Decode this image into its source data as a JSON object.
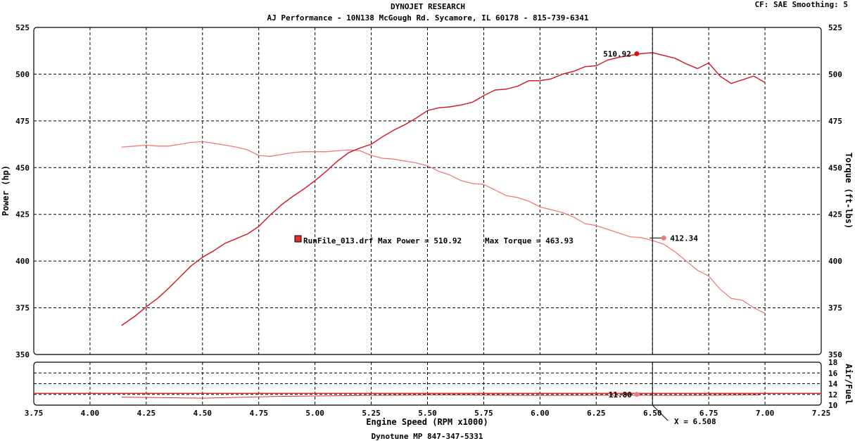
{
  "header": {
    "title": "DYNOJET RESEARCH",
    "subtitle": "AJ Performance - 10N138 McGough Rd. Sycamore, IL 60178 - 815-739-6341",
    "settings": "CF: SAE  Smoothing: 5"
  },
  "footer": {
    "text": "Dynotune MP 847-347-5331"
  },
  "legend": {
    "run_label": "RunFile_013.drf Max Power = 510.92",
    "torque_label": "Max Torque = 463.93",
    "swatch_color": "#e8302a"
  },
  "cursor": {
    "x_label": "X = 6.508"
  },
  "colors": {
    "power": "#d0202a",
    "torque": "#f07a7a",
    "afr": "#e03030",
    "grid": "#000000"
  },
  "chart_data": [
    {
      "type": "line",
      "xlabel": "Engine Speed (RPM x1000)",
      "ylabel": "Power (hp)",
      "y2label": "Torque (ft-lbs)",
      "xlim": [
        3.75,
        7.25
      ],
      "ylim": [
        350,
        525
      ],
      "y2lim": [
        350,
        525
      ],
      "x_ticks": [
        "3.75",
        "4.00",
        "4.25",
        "4.50",
        "4.75",
        "5.00",
        "5.25",
        "5.50",
        "5.75",
        "6.00",
        "6.25",
        "6.50",
        "6.75",
        "7.00",
        "7.25"
      ],
      "y_ticks": [
        "350",
        "375",
        "400",
        "425",
        "450",
        "475",
        "500",
        "525"
      ],
      "grid": true,
      "series": [
        {
          "key": "power",
          "x": [
            4.14,
            4.2,
            4.25,
            4.3,
            4.35,
            4.4,
            4.45,
            4.5,
            4.55,
            4.6,
            4.65,
            4.7,
            4.75,
            4.8,
            4.85,
            4.9,
            4.95,
            5.0,
            5.05,
            5.1,
            5.15,
            5.2,
            5.25,
            5.3,
            5.35,
            5.4,
            5.45,
            5.5,
            5.55,
            5.6,
            5.65,
            5.7,
            5.75,
            5.8,
            5.85,
            5.9,
            5.95,
            6.0,
            6.05,
            6.1,
            6.15,
            6.2,
            6.25,
            6.3,
            6.35,
            6.4,
            6.45,
            6.5,
            6.55,
            6.6,
            6.65,
            6.7,
            6.75,
            6.8,
            6.85,
            6.9,
            6.95,
            7.0
          ],
          "y": [
            365.5,
            370.5,
            375.5,
            380,
            385.5,
            391.5,
            397.5,
            402,
            405.5,
            409.5,
            412,
            414.5,
            418.5,
            424.5,
            430,
            434.5,
            438.5,
            443,
            448,
            453.5,
            458,
            460.5,
            462.5,
            466.5,
            470,
            473,
            476.5,
            480.5,
            482,
            482.5,
            483.5,
            485,
            488.5,
            491.5,
            492,
            493.5,
            496.5,
            496.5,
            497.5,
            500,
            501.5,
            504,
            504.5,
            507.5,
            509,
            510,
            511,
            511.5,
            510,
            508.5,
            505.5,
            503,
            506,
            499,
            495,
            497,
            499,
            495.5
          ]
        },
        {
          "key": "torque",
          "x": [
            4.14,
            4.2,
            4.25,
            4.3,
            4.35,
            4.4,
            4.45,
            4.5,
            4.55,
            4.6,
            4.65,
            4.7,
            4.75,
            4.8,
            4.85,
            4.9,
            4.95,
            5.0,
            5.05,
            5.1,
            5.15,
            5.2,
            5.25,
            5.3,
            5.35,
            5.4,
            5.45,
            5.5,
            5.55,
            5.6,
            5.65,
            5.7,
            5.75,
            5.8,
            5.85,
            5.9,
            5.95,
            6.0,
            6.05,
            6.1,
            6.15,
            6.2,
            6.25,
            6.3,
            6.35,
            6.4,
            6.45,
            6.5,
            6.55,
            6.6,
            6.65,
            6.7,
            6.75,
            6.8,
            6.85,
            6.9,
            6.95,
            7.0
          ],
          "y": [
            461,
            461.5,
            462,
            461.5,
            461.5,
            462.5,
            463.5,
            463.9,
            463,
            462,
            461,
            459.5,
            456.5,
            456,
            457,
            458,
            458.5,
            458.5,
            458.5,
            459,
            459.5,
            459,
            456.5,
            455,
            454.5,
            453.5,
            452.5,
            451,
            448,
            446,
            443,
            441.5,
            441,
            438,
            435,
            434,
            432,
            429,
            427.5,
            426,
            423.5,
            420,
            419,
            417,
            415,
            413,
            412.5,
            411,
            409,
            405,
            400,
            395,
            392,
            385,
            380,
            379,
            375,
            372
          ]
        }
      ],
      "markers": [
        {
          "series": "power",
          "x": 6.43,
          "y": 510.92,
          "label": "510.92"
        },
        {
          "series": "torque",
          "x": 6.55,
          "y": 412.34,
          "label": "412.34"
        }
      ],
      "cursor_x": 6.5
    },
    {
      "type": "line",
      "ylabel": "Air/Fuel",
      "xlim": [
        3.75,
        7.25
      ],
      "ylim": [
        10,
        18
      ],
      "y_ticks": [
        "10",
        "12",
        "14",
        "16",
        "18"
      ],
      "grid": true,
      "series": [
        {
          "key": "afr",
          "x": [
            3.75,
            7.25
          ],
          "y": [
            12.2,
            12.2
          ]
        },
        {
          "key": "afr_trace",
          "x": [
            4.14,
            4.5,
            4.8,
            5.2,
            5.6,
            6.0,
            6.4,
            6.6,
            6.8,
            6.98
          ],
          "y": [
            11.5,
            11.3,
            11.6,
            11.8,
            11.9,
            11.8,
            11.85,
            11.8,
            11.85,
            11.9
          ]
        }
      ],
      "markers": [
        {
          "series": "afr",
          "x": 6.43,
          "y": 12.0,
          "label": "11.80"
        }
      ]
    }
  ]
}
